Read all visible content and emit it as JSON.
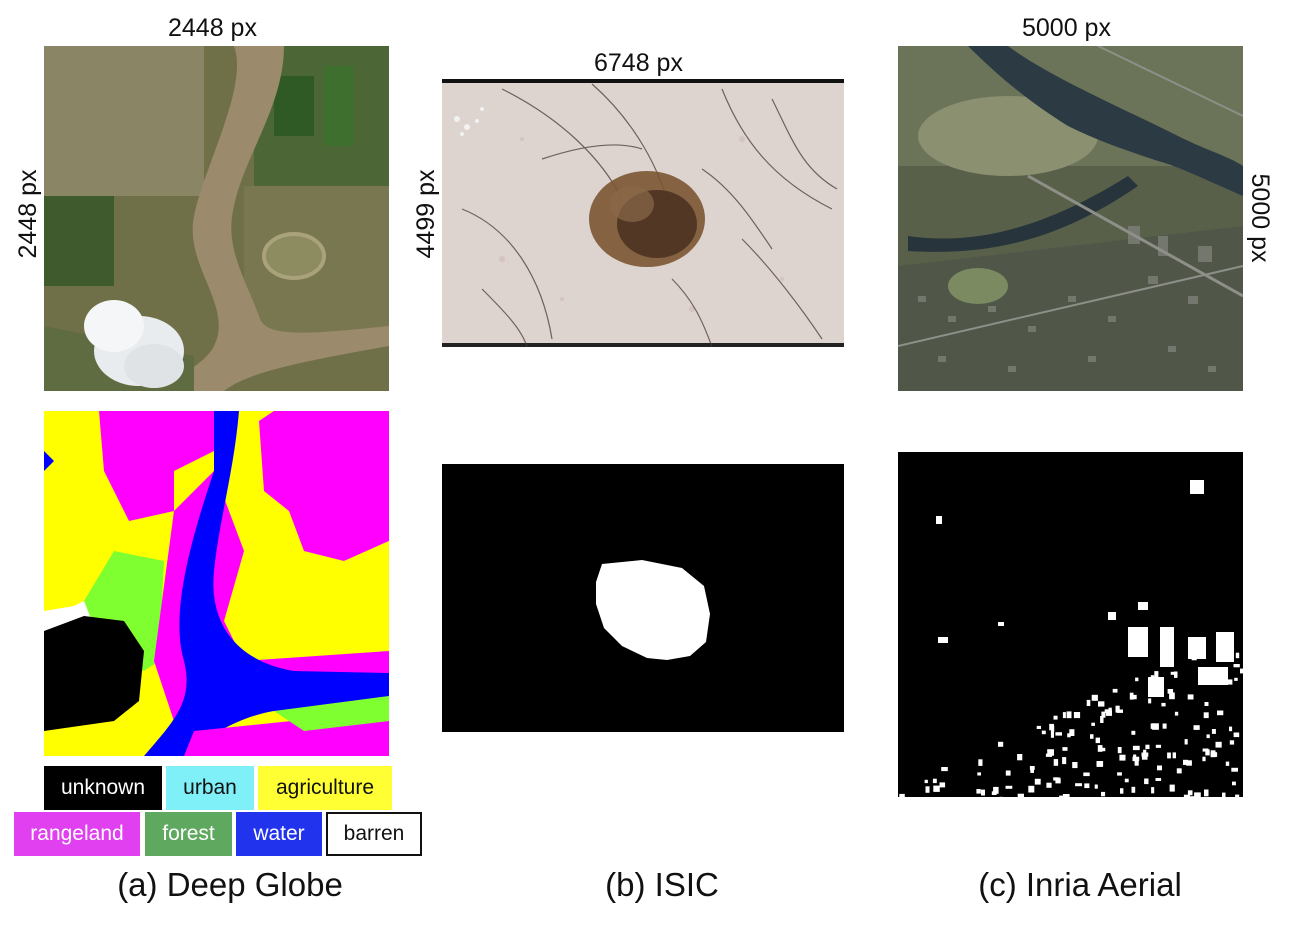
{
  "figure": {
    "columns": [
      {
        "id": "deep-globe",
        "width_label": "2448 px",
        "height_label": "2448 px",
        "caption": "(a) Deep Globe"
      },
      {
        "id": "isic",
        "width_label": "6748 px",
        "height_label": "4499 px",
        "caption": "(b) ISIC"
      },
      {
        "id": "inria-aerial",
        "width_label": "5000 px",
        "height_label": "5000 px",
        "caption": "(c) Inria Aerial"
      }
    ],
    "legend": [
      {
        "label": "unknown",
        "color": "#000000",
        "text_color": "#ffffff"
      },
      {
        "label": "urban",
        "color": "#80f0f8",
        "text_color": "#111111"
      },
      {
        "label": "agriculture",
        "color": "#ffff33",
        "text_color": "#111111"
      },
      {
        "label": "rangeland",
        "color": "#e040f0",
        "text_color": "#ffffff"
      },
      {
        "label": "forest",
        "color": "#5fa85f",
        "text_color": "#ffffff"
      },
      {
        "label": "water",
        "color": "#2233ee",
        "text_color": "#ffffff"
      },
      {
        "label": "barren",
        "color": "#ffffff",
        "text_color": "#111111"
      }
    ]
  }
}
